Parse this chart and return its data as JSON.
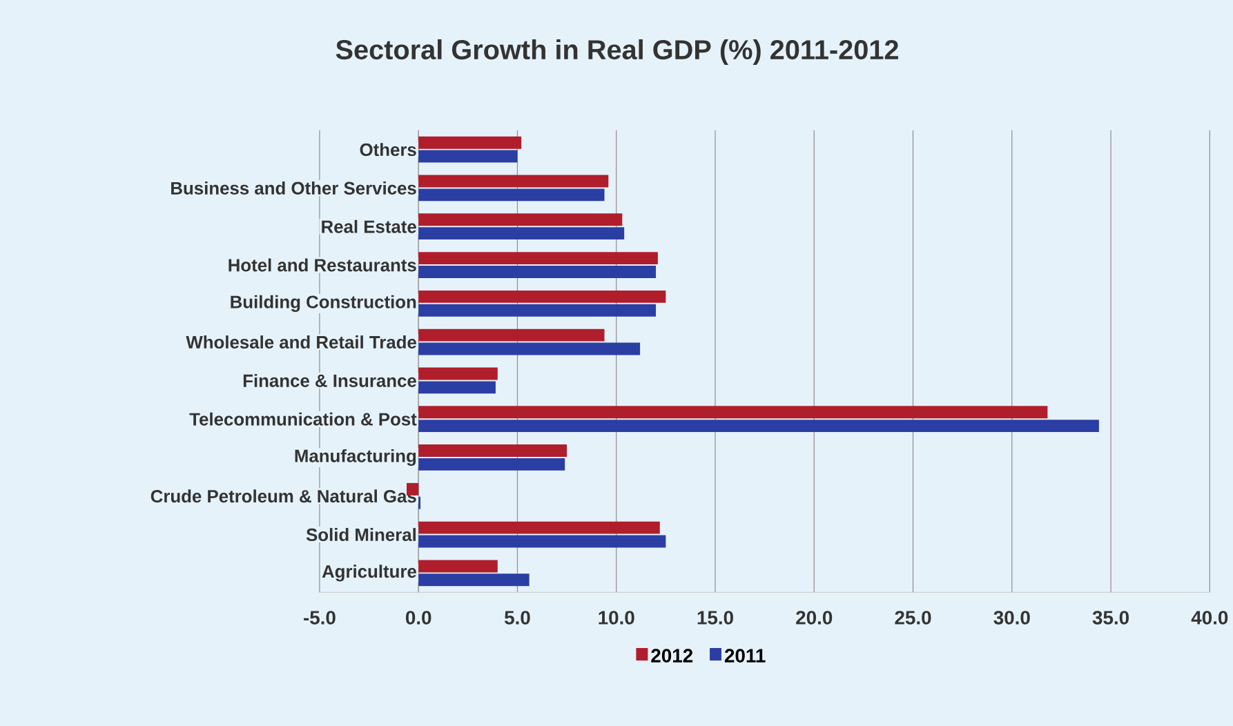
{
  "chart_data": {
    "type": "bar",
    "orientation": "horizontal",
    "title": "Sectoral Growth in Real  GDP (%) 2011-2012",
    "categories": [
      "Others",
      "Business  and Other Services",
      "Real Estate",
      "Hotel and Restaurants",
      "Building Construction",
      "Wholesale and Retail Trade",
      "Finance & Insurance",
      "Telecommunication &  Post",
      "Manufacturing",
      "Crude Petroleum & Natural Gas",
      "Solid Mineral",
      "Agriculture"
    ],
    "series": [
      {
        "name": "2012",
        "color": "#b01e2c",
        "values": [
          5.2,
          9.6,
          10.3,
          12.1,
          12.5,
          9.4,
          4.0,
          31.8,
          7.5,
          -0.6,
          12.2,
          4.0
        ]
      },
      {
        "name": "2011",
        "color": "#2b3ea3",
        "values": [
          5.0,
          9.4,
          10.4,
          12.0,
          12.0,
          11.2,
          3.9,
          34.4,
          7.4,
          0.1,
          12.5,
          5.6
        ]
      }
    ],
    "xlim": [
      -5,
      40
    ],
    "xticks": [
      {
        "value": -5,
        "label": "-5.0"
      },
      {
        "value": 0,
        "label": "0.0"
      },
      {
        "value": 5,
        "label": "5.0"
      },
      {
        "value": 10,
        "label": "10.0"
      },
      {
        "value": 15,
        "label": "15.0"
      },
      {
        "value": 20,
        "label": "20.0"
      },
      {
        "value": 25,
        "label": "25.0"
      },
      {
        "value": 30,
        "label": "30.0"
      },
      {
        "value": 35,
        "label": "35.0"
      },
      {
        "value": 40,
        "label": "40.0"
      }
    ],
    "grid": "x",
    "legend": "bottom"
  }
}
